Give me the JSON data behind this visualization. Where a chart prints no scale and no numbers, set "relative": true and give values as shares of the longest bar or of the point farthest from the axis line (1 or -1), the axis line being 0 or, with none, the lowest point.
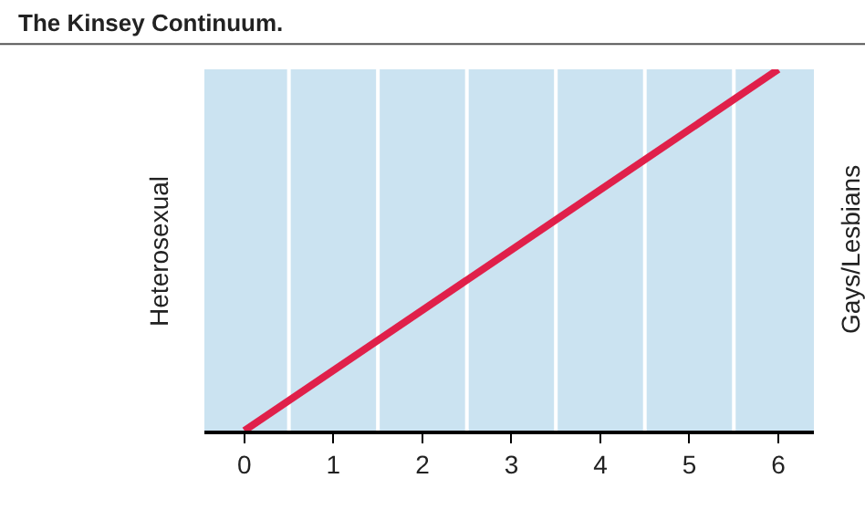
{
  "chart_data": {
    "type": "line",
    "title": "The Kinsey Continuum.",
    "ylabel": "Heterosexual",
    "y2label": "Gays/Lesbians",
    "relative": true,
    "x": [
      0,
      6
    ],
    "series": [
      {
        "color": "#e0204a",
        "values": [
          0,
          1
        ]
      }
    ],
    "xlim": [
      -0.45,
      6.4
    ],
    "xticks": [
      0,
      1,
      2,
      3,
      4,
      5,
      6
    ],
    "ref_lines": [
      {
        "axis": "x",
        "value": 0.5,
        "color": "#ffffff"
      },
      {
        "axis": "x",
        "value": 1.5,
        "color": "#ffffff"
      },
      {
        "axis": "x",
        "value": 2.5,
        "color": "#ffffff"
      },
      {
        "axis": "x",
        "value": 3.5,
        "color": "#ffffff"
      },
      {
        "axis": "x",
        "value": 4.5,
        "color": "#ffffff"
      },
      {
        "axis": "x",
        "value": 5.5,
        "color": "#ffffff"
      }
    ],
    "grid": false,
    "marker": "none",
    "line_style": "solid"
  }
}
